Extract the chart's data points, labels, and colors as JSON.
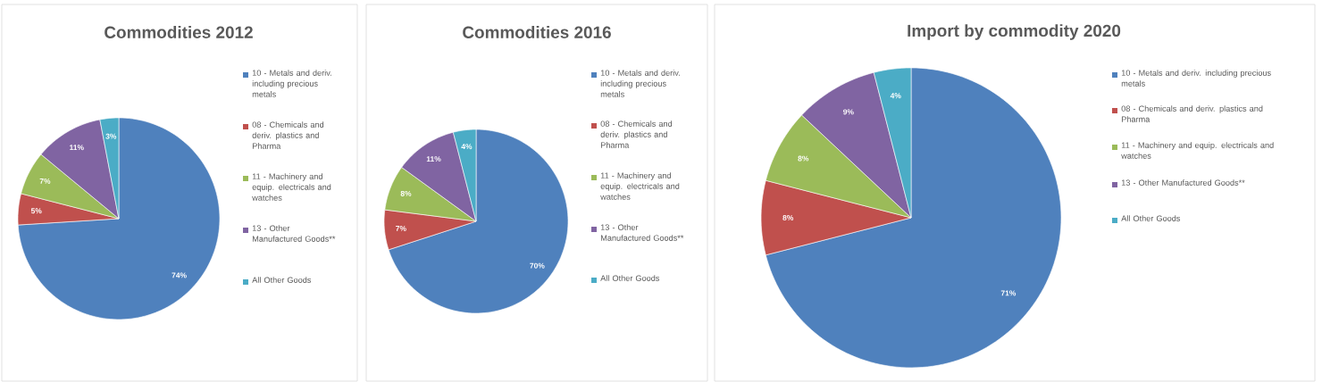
{
  "chart_data": [
    {
      "type": "pie",
      "title": "Commodities 2012",
      "categories": [
        "10 - Metals and deriv. including precious metals",
        "08 - Chemicals and deriv. plastics and Pharma",
        "11 - Machinery and equip. electricals and watches",
        "13 - Other Manufactured Goods**",
        "All Other Goods"
      ],
      "values": [
        74,
        5,
        7,
        11,
        3
      ],
      "value_labels": [
        "74%",
        "5%",
        "7%",
        "11%",
        "3%"
      ],
      "colors": [
        "#4f81bd",
        "#c0504d",
        "#9bbb59",
        "#8064a2",
        "#4bacc6"
      ],
      "legend": "right"
    },
    {
      "type": "pie",
      "title": "Commodities 2016",
      "categories": [
        "10 - Metals and deriv. including precious metals",
        "08 - Chemicals and deriv. plastics and Pharma",
        "11 - Machinery and equip. electricals and watches",
        "13 - Other Manufactured Goods**",
        "All Other Goods"
      ],
      "values": [
        70,
        7,
        8,
        11,
        4
      ],
      "value_labels": [
        "70%",
        "7%",
        "8%",
        "11%",
        "4%"
      ],
      "colors": [
        "#4f81bd",
        "#c0504d",
        "#9bbb59",
        "#8064a2",
        "#4bacc6"
      ],
      "legend": "right"
    },
    {
      "type": "pie",
      "title": "Import by commodity 2020",
      "categories": [
        "10 - Metals and deriv. including precious metals",
        "08 - Chemicals and deriv. plastics and Pharma",
        "11 - Machinery and equip. electricals and watches",
        "13 - Other Manufactured Goods**",
        "All Other Goods"
      ],
      "values": [
        71,
        8,
        8,
        9,
        4
      ],
      "value_labels": [
        "71%",
        "8%",
        "8%",
        "9%",
        "4%"
      ],
      "colors": [
        "#4f81bd",
        "#c0504d",
        "#9bbb59",
        "#8064a2",
        "#4bacc6"
      ],
      "legend": "right"
    }
  ]
}
